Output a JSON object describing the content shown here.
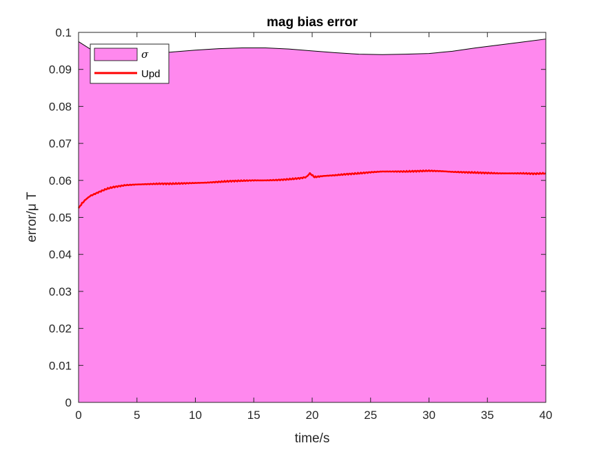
{
  "chart_data": {
    "type": "area",
    "title": "mag bias error",
    "xlabel": "time/s",
    "ylabel": "error/μ T",
    "xlim": [
      0,
      40
    ],
    "ylim": [
      0,
      0.1
    ],
    "xticks": [
      0,
      5,
      10,
      15,
      20,
      25,
      30,
      35,
      40
    ],
    "yticks": [
      0,
      0.01,
      0.02,
      0.03,
      0.04,
      0.05,
      0.06,
      0.07,
      0.08,
      0.09,
      0.1
    ],
    "xtick_labels": [
      "0",
      "5",
      "10",
      "15",
      "20",
      "25",
      "30",
      "35",
      "40"
    ],
    "ytick_labels": [
      "0",
      "0.01",
      "0.02",
      "0.03",
      "0.04",
      "0.05",
      "0.06",
      "0.07",
      "0.08",
      "0.09",
      "0.1"
    ],
    "grid": false,
    "legend_position": "top-left",
    "series": [
      {
        "name": "σ",
        "kind": "area",
        "color": "#ff88ee",
        "x": [
          0,
          1,
          2,
          4,
          6,
          8,
          10,
          12,
          14,
          16,
          18,
          20,
          22,
          24,
          26,
          28,
          30,
          32,
          34,
          36,
          38,
          40
        ],
        "values": [
          0.0975,
          0.0955,
          0.0945,
          0.094,
          0.0942,
          0.0947,
          0.0952,
          0.0956,
          0.0958,
          0.0958,
          0.0955,
          0.095,
          0.0945,
          0.0941,
          0.094,
          0.0941,
          0.0943,
          0.0949,
          0.0958,
          0.0966,
          0.0974,
          0.0982
        ]
      },
      {
        "name": "Upd",
        "kind": "line",
        "color": "#ff0000",
        "x": [
          0,
          0.3,
          0.6,
          1,
          1.5,
          2,
          2.5,
          3,
          4,
          5,
          6,
          7,
          8,
          9,
          10,
          11,
          12,
          13,
          14,
          15,
          16,
          17,
          18,
          19,
          19.5,
          19.8,
          20.2,
          21,
          22,
          23,
          24,
          25,
          26,
          27,
          28,
          29,
          30,
          31,
          32,
          33,
          34,
          35,
          36,
          37,
          38,
          39,
          40
        ],
        "values": [
          0.0525,
          0.0538,
          0.0548,
          0.0558,
          0.0565,
          0.0572,
          0.0578,
          0.0582,
          0.0587,
          0.0589,
          0.059,
          0.0591,
          0.0591,
          0.0592,
          0.0593,
          0.0594,
          0.0596,
          0.0598,
          0.0599,
          0.06,
          0.06,
          0.0601,
          0.0603,
          0.0606,
          0.0609,
          0.0619,
          0.0609,
          0.0612,
          0.0614,
          0.0617,
          0.0619,
          0.0622,
          0.0624,
          0.0624,
          0.0624,
          0.0625,
          0.0626,
          0.0625,
          0.0623,
          0.0622,
          0.0621,
          0.062,
          0.0619,
          0.0619,
          0.0619,
          0.0618,
          0.0619
        ]
      }
    ]
  }
}
